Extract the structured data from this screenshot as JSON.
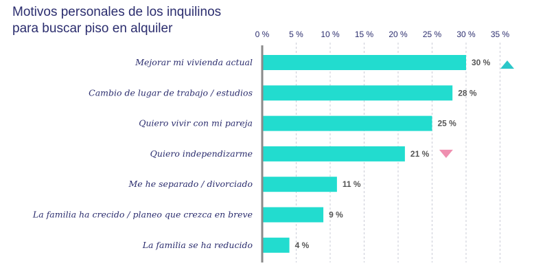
{
  "title_line1": "Motivos personales de los inquilinos",
  "title_line2": "para buscar piso en alquiler",
  "chart_data": {
    "type": "bar",
    "orientation": "horizontal",
    "title": "Motivos personales de los inquilinos para buscar piso en alquiler",
    "categories": [
      "Mejorar mi vivienda actual",
      "Cambio de lugar de trabajo / estudios",
      "Quiero vivir con mi pareja",
      "Quiero independizarme",
      "Me he separado / divorciado",
      "La familia ha crecido / planeo que crezca en breve",
      "La familia se ha reducido"
    ],
    "values": [
      30,
      28,
      25,
      21,
      11,
      9,
      4
    ],
    "value_labels": [
      "30 %",
      "28 %",
      "25 %",
      "21 %",
      "11 %",
      "9 %",
      "4 %"
    ],
    "xlim": [
      0,
      35
    ],
    "xticks": [
      0,
      5,
      10,
      15,
      20,
      25,
      30,
      35
    ],
    "xtick_labels": [
      "0 %",
      "5 %",
      "10 %",
      "15 %",
      "20 %",
      "25 %",
      "30 %",
      "35 %"
    ],
    "axis_position": "top",
    "grid": "vertical dashed",
    "bar_color": "#22dccf",
    "indicators": [
      {
        "category": "Mejorar mi vivienda actual",
        "direction": "up",
        "color": "#2bc7c9"
      },
      {
        "category": "Quiero independizarme",
        "direction": "down",
        "color": "#ef8fb0"
      }
    ]
  }
}
